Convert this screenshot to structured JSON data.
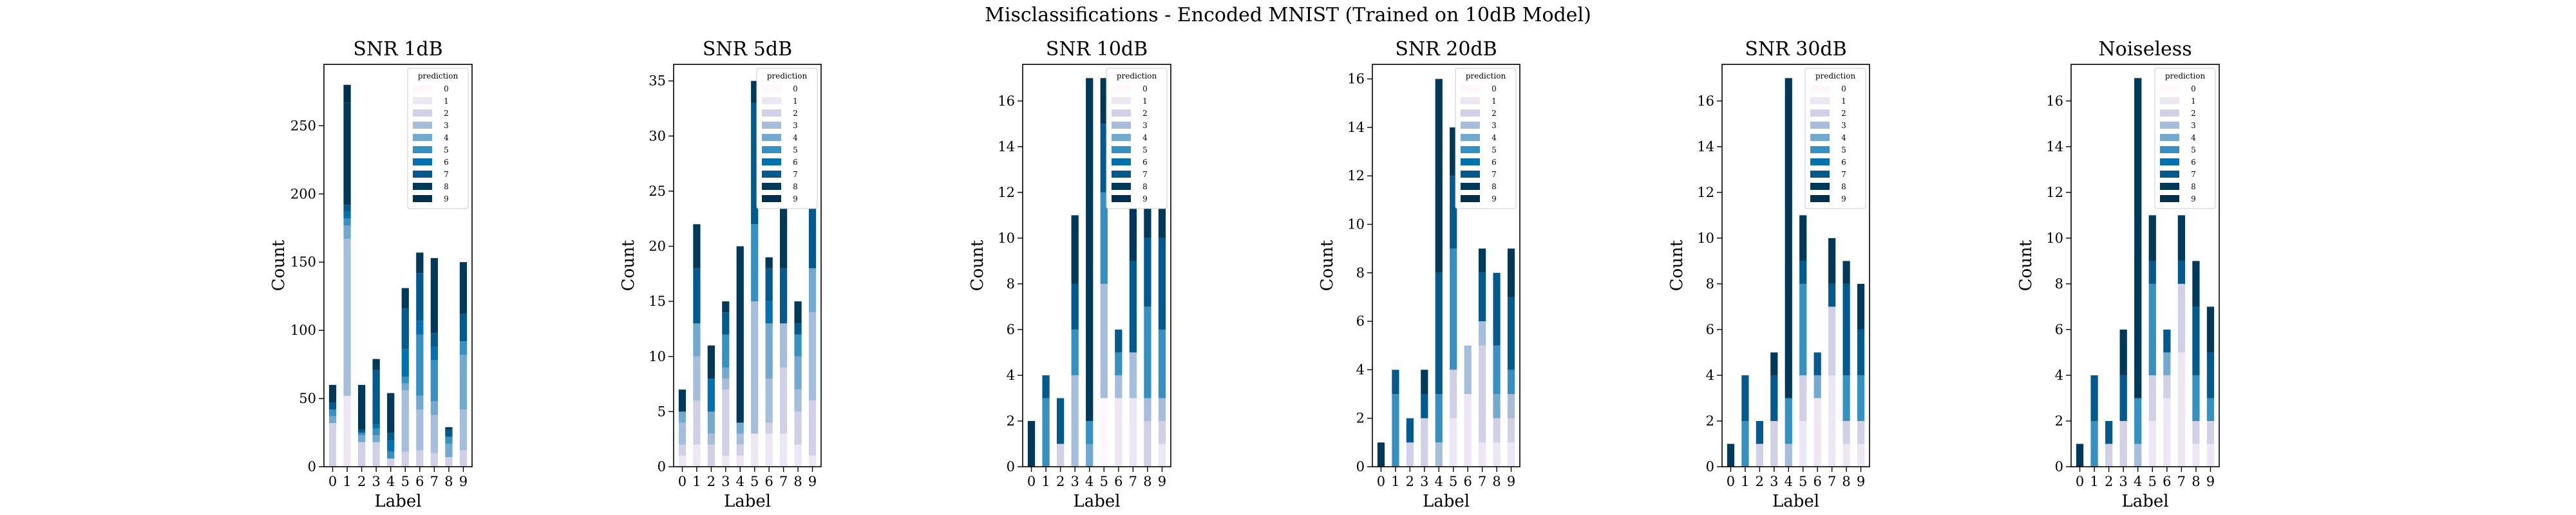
{
  "suptitle": "Misclassifications - Encoded MNIST (Trained on 10dB Model)",
  "legend_title": "prediction",
  "prediction_classes": [
    "0",
    "1",
    "2",
    "3",
    "4",
    "5",
    "6",
    "7",
    "8",
    "9"
  ],
  "prediction_colors": [
    "#fff7fb",
    "#ece7f2",
    "#d0d1e6",
    "#a6bddb",
    "#74a9cf",
    "#3690c0",
    "#0570b0",
    "#045a8d",
    "#023858",
    "#01304e"
  ],
  "chart_data": [
    {
      "type": "bar",
      "stacked": true,
      "title": "SNR 1dB",
      "xlabel": "Label",
      "ylabel": "Count",
      "ylim": [
        0,
        295
      ],
      "yticks": [
        0,
        50,
        100,
        150,
        200,
        250
      ],
      "categories": [
        "0",
        "1",
        "2",
        "3",
        "4",
        "5",
        "6",
        "7",
        "8",
        "9"
      ],
      "series": [
        {
          "name": "0",
          "values": [
            0,
            0,
            0,
            0,
            0,
            0,
            0,
            0,
            0,
            0
          ]
        },
        {
          "name": "1",
          "values": [
            0,
            52,
            0,
            0,
            0,
            0,
            0,
            0,
            0,
            0
          ]
        },
        {
          "name": "2",
          "values": [
            32,
            0,
            18,
            18,
            6,
            11,
            12,
            10,
            7,
            12
          ]
        },
        {
          "name": "3",
          "values": [
            0,
            115,
            0,
            0,
            0,
            45,
            30,
            28,
            0,
            30
          ]
        },
        {
          "name": "4",
          "values": [
            5,
            10,
            5,
            5,
            0,
            5,
            10,
            10,
            10,
            40
          ]
        },
        {
          "name": "5",
          "values": [
            5,
            5,
            2,
            5,
            5,
            5,
            45,
            30,
            5,
            10
          ]
        },
        {
          "name": "6",
          "values": [
            0,
            5,
            0,
            3,
            8,
            20,
            10,
            10,
            0,
            0
          ]
        },
        {
          "name": "7",
          "values": [
            5,
            5,
            2,
            40,
            6,
            30,
            35,
            10,
            5,
            20
          ]
        },
        {
          "name": "8",
          "values": [
            13,
            75,
            33,
            8,
            29,
            15,
            15,
            55,
            2,
            38
          ]
        },
        {
          "name": "9",
          "values": [
            0,
            13,
            0,
            0,
            0,
            0,
            0,
            0,
            0,
            0
          ]
        }
      ]
    },
    {
      "type": "bar",
      "stacked": true,
      "title": "SNR 5dB",
      "xlabel": "Label",
      "ylabel": "Count",
      "ylim": [
        0,
        36.5
      ],
      "yticks": [
        0,
        5,
        10,
        15,
        20,
        25,
        30,
        35
      ],
      "categories": [
        "0",
        "1",
        "2",
        "3",
        "4",
        "5",
        "6",
        "7",
        "8",
        "9"
      ],
      "series": [
        {
          "name": "0",
          "values": [
            0,
            0,
            0,
            0,
            0,
            0,
            0,
            0,
            0,
            0
          ]
        },
        {
          "name": "1",
          "values": [
            1,
            2,
            0,
            1,
            1,
            3,
            3,
            3,
            2,
            1
          ]
        },
        {
          "name": "2",
          "values": [
            1,
            4,
            2,
            6,
            1,
            0,
            1,
            6,
            3,
            5
          ]
        },
        {
          "name": "3",
          "values": [
            2,
            4,
            1,
            1,
            1,
            12,
            4,
            4,
            2,
            8
          ]
        },
        {
          "name": "4",
          "values": [
            1,
            3,
            2,
            1,
            1,
            0,
            5,
            0,
            3,
            4
          ]
        },
        {
          "name": "5",
          "values": [
            0,
            0,
            0,
            3,
            0,
            7,
            0,
            0,
            2,
            0
          ]
        },
        {
          "name": "6",
          "values": [
            0,
            0,
            3,
            0,
            0,
            0,
            2,
            0,
            0,
            0
          ]
        },
        {
          "name": "7",
          "values": [
            0,
            5,
            0,
            2,
            0,
            11,
            3,
            5,
            1,
            8
          ]
        },
        {
          "name": "8",
          "values": [
            2,
            4,
            3,
            1,
            16,
            2,
            1,
            13,
            2,
            6
          ]
        },
        {
          "name": "9",
          "values": [
            0,
            0,
            0,
            0,
            0,
            0,
            0,
            0,
            0,
            0
          ]
        }
      ]
    },
    {
      "type": "bar",
      "stacked": true,
      "title": "SNR 10dB",
      "xlabel": "Label",
      "ylabel": "Count",
      "ylim": [
        0,
        17.6
      ],
      "yticks": [
        0,
        2,
        4,
        6,
        8,
        10,
        12,
        14,
        16
      ],
      "categories": [
        "0",
        "1",
        "2",
        "3",
        "4",
        "5",
        "6",
        "7",
        "8",
        "9"
      ],
      "series": [
        {
          "name": "0",
          "values": [
            0,
            0,
            0,
            0,
            0,
            3,
            0,
            0,
            0,
            0
          ]
        },
        {
          "name": "1",
          "values": [
            0,
            0,
            0,
            0,
            0,
            0,
            3,
            3,
            0,
            1
          ]
        },
        {
          "name": "2",
          "values": [
            0,
            0,
            1,
            0,
            0,
            0,
            0,
            0,
            2,
            1
          ]
        },
        {
          "name": "3",
          "values": [
            0,
            0,
            0,
            4,
            0,
            5,
            1,
            2,
            1,
            1
          ]
        },
        {
          "name": "4",
          "values": [
            0,
            0,
            0,
            0,
            1,
            0,
            0,
            0,
            0,
            0
          ]
        },
        {
          "name": "5",
          "values": [
            0,
            3,
            0,
            2,
            1,
            4,
            1,
            0,
            4,
            3
          ]
        },
        {
          "name": "6",
          "values": [
            0,
            0,
            0,
            0,
            0,
            0,
            0,
            0,
            0,
            0
          ]
        },
        {
          "name": "7",
          "values": [
            0,
            1,
            2,
            2,
            0,
            3,
            1,
            4,
            3,
            4
          ]
        },
        {
          "name": "8",
          "values": [
            2,
            0,
            0,
            3,
            15,
            2,
            0,
            4,
            3,
            2
          ]
        },
        {
          "name": "9",
          "values": [
            0,
            0,
            0,
            0,
            0,
            0,
            0,
            0,
            0,
            0
          ]
        }
      ]
    },
    {
      "type": "bar",
      "stacked": true,
      "title": "SNR 20dB",
      "xlabel": "Label",
      "ylabel": "Count",
      "ylim": [
        0,
        16.6
      ],
      "yticks": [
        0,
        2,
        4,
        6,
        8,
        10,
        12,
        14,
        16
      ],
      "categories": [
        "0",
        "1",
        "2",
        "3",
        "4",
        "5",
        "6",
        "7",
        "8",
        "9"
      ],
      "series": [
        {
          "name": "0",
          "values": [
            0,
            0,
            0,
            0,
            0,
            0,
            0,
            0,
            0,
            0
          ]
        },
        {
          "name": "1",
          "values": [
            0,
            0,
            0,
            0,
            0,
            2,
            3,
            1,
            1,
            1
          ]
        },
        {
          "name": "2",
          "values": [
            0,
            0,
            1,
            2,
            0,
            2,
            0,
            4,
            1,
            1
          ]
        },
        {
          "name": "3",
          "values": [
            0,
            0,
            0,
            0,
            1,
            0,
            2,
            1,
            0,
            1
          ]
        },
        {
          "name": "4",
          "values": [
            0,
            0,
            0,
            0,
            0,
            0,
            0,
            0,
            1,
            0
          ]
        },
        {
          "name": "5",
          "values": [
            0,
            3,
            0,
            0,
            2,
            5,
            0,
            0,
            2,
            1
          ]
        },
        {
          "name": "6",
          "values": [
            0,
            0,
            0,
            0,
            0,
            0,
            0,
            0,
            0,
            0
          ]
        },
        {
          "name": "7",
          "values": [
            0,
            1,
            1,
            1,
            5,
            3,
            0,
            2,
            3,
            3
          ]
        },
        {
          "name": "8",
          "values": [
            1,
            0,
            0,
            1,
            8,
            2,
            0,
            1,
            0,
            2
          ]
        },
        {
          "name": "9",
          "values": [
            0,
            0,
            0,
            0,
            0,
            0,
            0,
            0,
            0,
            0
          ]
        }
      ]
    },
    {
      "type": "bar",
      "stacked": true,
      "title": "SNR 30dB",
      "xlabel": "Label",
      "ylabel": "Count",
      "ylim": [
        0,
        17.6
      ],
      "yticks": [
        0,
        2,
        4,
        6,
        8,
        10,
        12,
        14,
        16
      ],
      "categories": [
        "0",
        "1",
        "2",
        "3",
        "4",
        "5",
        "6",
        "7",
        "8",
        "9"
      ],
      "series": [
        {
          "name": "0",
          "values": [
            0,
            0,
            0,
            0,
            0,
            0,
            0,
            0,
            0,
            0
          ]
        },
        {
          "name": "1",
          "values": [
            0,
            0,
            0,
            0,
            0,
            2,
            3,
            4,
            1,
            1
          ]
        },
        {
          "name": "2",
          "values": [
            0,
            0,
            1,
            2,
            0,
            2,
            0,
            3,
            1,
            1
          ]
        },
        {
          "name": "3",
          "values": [
            0,
            0,
            0,
            0,
            1,
            0,
            0,
            0,
            0,
            0
          ]
        },
        {
          "name": "4",
          "values": [
            0,
            0,
            0,
            0,
            0,
            0,
            1,
            0,
            0,
            0
          ]
        },
        {
          "name": "5",
          "values": [
            0,
            2,
            0,
            0,
            2,
            4,
            0,
            0,
            2,
            2
          ]
        },
        {
          "name": "6",
          "values": [
            0,
            0,
            0,
            0,
            0,
            0,
            0,
            0,
            0,
            0
          ]
        },
        {
          "name": "7",
          "values": [
            0,
            2,
            1,
            2,
            0,
            1,
            1,
            1,
            4,
            2
          ]
        },
        {
          "name": "8",
          "values": [
            1,
            0,
            0,
            1,
            14,
            2,
            0,
            2,
            1,
            2
          ]
        },
        {
          "name": "9",
          "values": [
            0,
            0,
            0,
            0,
            0,
            0,
            0,
            0,
            0,
            0
          ]
        }
      ]
    },
    {
      "type": "bar",
      "stacked": true,
      "title": "Noiseless",
      "xlabel": "Label",
      "ylabel": "Count",
      "ylim": [
        0,
        17.6
      ],
      "yticks": [
        0,
        2,
        4,
        6,
        8,
        10,
        12,
        14,
        16
      ],
      "categories": [
        "0",
        "1",
        "2",
        "3",
        "4",
        "5",
        "6",
        "7",
        "8",
        "9"
      ],
      "series": [
        {
          "name": "0",
          "values": [
            0,
            0,
            0,
            0,
            0,
            0,
            0,
            0,
            0,
            0
          ]
        },
        {
          "name": "1",
          "values": [
            0,
            0,
            0,
            0,
            0,
            2,
            3,
            5,
            1,
            1
          ]
        },
        {
          "name": "2",
          "values": [
            0,
            0,
            1,
            2,
            0,
            2,
            1,
            3,
            1,
            1
          ]
        },
        {
          "name": "3",
          "values": [
            0,
            0,
            0,
            0,
            1,
            0,
            0,
            0,
            0,
            0
          ]
        },
        {
          "name": "4",
          "values": [
            0,
            0,
            0,
            0,
            0,
            0,
            1,
            0,
            0,
            0
          ]
        },
        {
          "name": "5",
          "values": [
            0,
            2,
            0,
            0,
            2,
            4,
            0,
            0,
            2,
            1
          ]
        },
        {
          "name": "6",
          "values": [
            0,
            0,
            0,
            0,
            0,
            0,
            0,
            0,
            0,
            0
          ]
        },
        {
          "name": "7",
          "values": [
            0,
            2,
            1,
            2,
            0,
            1,
            1,
            1,
            3,
            2
          ]
        },
        {
          "name": "8",
          "values": [
            1,
            0,
            0,
            2,
            14,
            2,
            0,
            2,
            2,
            2
          ]
        },
        {
          "name": "9",
          "values": [
            0,
            0,
            0,
            0,
            0,
            0,
            0,
            0,
            0,
            0
          ]
        }
      ]
    }
  ]
}
